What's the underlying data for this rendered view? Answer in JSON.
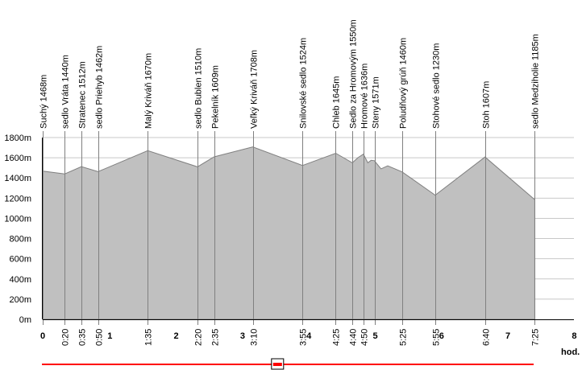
{
  "chart_data": {
    "type": "area",
    "x_unit_label": "hod.",
    "ylim": [
      0,
      1800
    ],
    "xlim": [
      0,
      8
    ],
    "y_ticks": [
      {
        "value": 0,
        "label": "0m"
      },
      {
        "value": 200,
        "label": "200m"
      },
      {
        "value": 400,
        "label": "400m"
      },
      {
        "value": 600,
        "label": "600m"
      },
      {
        "value": 800,
        "label": "800m"
      },
      {
        "value": 1000,
        "label": "1000m"
      },
      {
        "value": 1200,
        "label": "1200m"
      },
      {
        "value": 1400,
        "label": "1400m"
      },
      {
        "value": 1600,
        "label": "1600m"
      },
      {
        "value": 1800,
        "label": "1800m"
      }
    ],
    "x_hour_ticks": [
      {
        "value": 0,
        "label": "0"
      },
      {
        "value": 1,
        "label": "1"
      },
      {
        "value": 2,
        "label": "2"
      },
      {
        "value": 3,
        "label": "3"
      },
      {
        "value": 4,
        "label": "4"
      },
      {
        "value": 5,
        "label": "5"
      },
      {
        "value": 6,
        "label": "6"
      },
      {
        "value": 7,
        "label": "7"
      },
      {
        "value": 8,
        "label": "8"
      }
    ],
    "waypoints": [
      {
        "label": "Suchý 1468m",
        "time": 0.0,
        "time_label": "",
        "elevation": 1468
      },
      {
        "label": "sedlo Vráta 1440m",
        "time": 0.3333,
        "time_label": "0:20",
        "elevation": 1440
      },
      {
        "label": "Stratenec 1512m",
        "time": 0.5833,
        "time_label": "0:35",
        "elevation": 1512
      },
      {
        "label": "sedlo Priehyb 1462m",
        "time": 0.8333,
        "time_label": "0:50",
        "elevation": 1462
      },
      {
        "label": "Malý Kriváň 1670m",
        "time": 1.5833,
        "time_label": "1:35",
        "elevation": 1670
      },
      {
        "label": "sedlo Bublen 1510m",
        "time": 2.3333,
        "time_label": "2:20",
        "elevation": 1510
      },
      {
        "label": "Pekelník 1609m",
        "time": 2.5833,
        "time_label": "2:35",
        "elevation": 1609
      },
      {
        "label": "Veľký Kriváň 1708m",
        "time": 3.1667,
        "time_label": "3:10",
        "elevation": 1708
      },
      {
        "label": "Snilovské sedlo 1524m",
        "time": 3.9167,
        "time_label": "3:55",
        "elevation": 1524
      },
      {
        "label": "Chleb 1645m",
        "time": 4.4167,
        "time_label": "4:25",
        "elevation": 1645
      },
      {
        "label": "Sedlo za Hromovým 1550m",
        "time": 4.6667,
        "time_label": "4:40",
        "elevation": 1550
      },
      {
        "label": "Hromové 1636m",
        "time": 4.8333,
        "time_label": "4:50",
        "elevation": 1636
      },
      {
        "label": "Steny 1571m",
        "time": 5.0,
        "time_label": "5",
        "elevation": 1571
      },
      {
        "label": "Poludňový grúň 1460m",
        "time": 5.4167,
        "time_label": "5:25",
        "elevation": 1460
      },
      {
        "label": "Stohové sedlo 1230m",
        "time": 5.9167,
        "time_label": "5:55",
        "elevation": 1230
      },
      {
        "label": "Stoh 1607m",
        "time": 6.6667,
        "time_label": "6:40",
        "elevation": 1607
      },
      {
        "label": "sedlo Medziholie 1185m",
        "time": 7.4167,
        "time_label": "7:25",
        "elevation": 1185
      }
    ],
    "profile": [
      [
        0.0,
        1468
      ],
      [
        0.3333,
        1440
      ],
      [
        0.5833,
        1512
      ],
      [
        0.8333,
        1462
      ],
      [
        1.5833,
        1670
      ],
      [
        2.3333,
        1510
      ],
      [
        2.5833,
        1609
      ],
      [
        3.1667,
        1708
      ],
      [
        3.9167,
        1524
      ],
      [
        4.4167,
        1645
      ],
      [
        4.6667,
        1550
      ],
      [
        4.75,
        1600
      ],
      [
        4.8333,
        1636
      ],
      [
        4.9,
        1550
      ],
      [
        4.95,
        1575
      ],
      [
        5.0,
        1571
      ],
      [
        5.05,
        1530
      ],
      [
        5.1,
        1490
      ],
      [
        5.2,
        1520
      ],
      [
        5.4167,
        1460
      ],
      [
        5.9167,
        1230
      ],
      [
        6.6667,
        1607
      ],
      [
        7.4167,
        1185
      ]
    ],
    "colors": {
      "fill": "#c0c0c0",
      "outline": "#808080",
      "grid": "#c8c8c8",
      "marker_line": "#808080",
      "scroll_line": "#ff0000"
    }
  },
  "scrollbar": {
    "position": 0.48
  }
}
